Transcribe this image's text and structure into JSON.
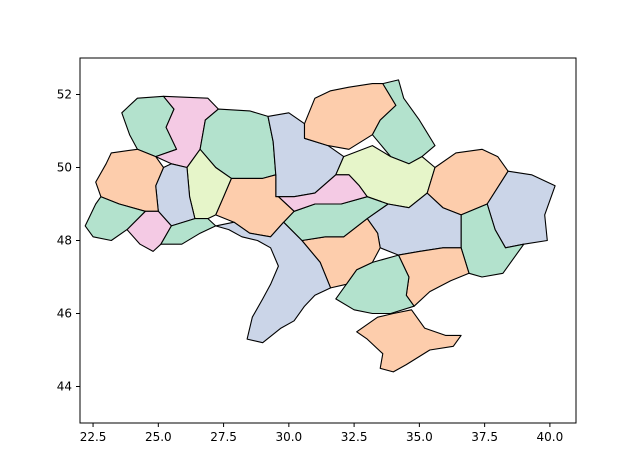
{
  "chart_data": {
    "type": "map",
    "title": "",
    "xlabel": "",
    "ylabel": "",
    "xlim": [
      22.0,
      41.0
    ],
    "ylim": [
      43.0,
      53.0
    ],
    "x_ticks": [
      "22.5",
      "25.0",
      "27.5",
      "30.0",
      "32.5",
      "35.0",
      "37.5",
      "40.0"
    ],
    "y_ticks": [
      "44",
      "46",
      "48",
      "50",
      "52"
    ],
    "x_tick_values": [
      22.5,
      25.0,
      27.5,
      30.0,
      32.5,
      35.0,
      37.5,
      40.0
    ],
    "y_tick_values": [
      44,
      46,
      48,
      50,
      52
    ],
    "grid": false,
    "legend": "none",
    "palette": {
      "green": "#b3e2cd",
      "orange": "#fdcdac",
      "blue": "#cbd5e8",
      "pink": "#f4cae4",
      "lime": "#e6f5c9"
    },
    "regions": [
      {
        "id": "volyn",
        "color": "green",
        "coords": [
          [
            23.6,
            51.5
          ],
          [
            24.2,
            51.9
          ],
          [
            25.2,
            51.95
          ],
          [
            25.6,
            51.6
          ],
          [
            25.3,
            51.1
          ],
          [
            25.7,
            50.5
          ],
          [
            24.9,
            50.3
          ],
          [
            24.2,
            50.5
          ],
          [
            23.9,
            50.9
          ]
        ]
      },
      {
        "id": "rivne",
        "color": "pink",
        "coords": [
          [
            25.6,
            51.6
          ],
          [
            25.2,
            51.95
          ],
          [
            26.9,
            51.9
          ],
          [
            27.3,
            51.6
          ],
          [
            26.8,
            51.3
          ],
          [
            26.6,
            50.5
          ],
          [
            26.1,
            50.0
          ],
          [
            25.5,
            50.1
          ],
          [
            24.9,
            50.3
          ],
          [
            25.7,
            50.5
          ],
          [
            25.3,
            51.1
          ]
        ]
      },
      {
        "id": "zhytomyr",
        "color": "green",
        "coords": [
          [
            27.3,
            51.6
          ],
          [
            28.5,
            51.55
          ],
          [
            29.2,
            51.4
          ],
          [
            29.4,
            50.7
          ],
          [
            29.5,
            49.8
          ],
          [
            29.0,
            49.7
          ],
          [
            28.0,
            49.7
          ],
          [
            27.8,
            49.7
          ],
          [
            27.2,
            50.0
          ],
          [
            26.6,
            50.5
          ],
          [
            26.8,
            51.3
          ]
        ]
      },
      {
        "id": "kyiv",
        "color": "blue",
        "coords": [
          [
            29.2,
            51.4
          ],
          [
            30.0,
            51.5
          ],
          [
            30.6,
            51.2
          ],
          [
            30.6,
            50.8
          ],
          [
            31.5,
            50.6
          ],
          [
            32.1,
            50.3
          ],
          [
            31.8,
            49.8
          ],
          [
            31.0,
            49.3
          ],
          [
            30.2,
            49.2
          ],
          [
            29.5,
            49.2
          ],
          [
            29.5,
            49.8
          ],
          [
            29.4,
            50.7
          ]
        ]
      },
      {
        "id": "chernihiv",
        "color": "orange",
        "coords": [
          [
            30.6,
            51.2
          ],
          [
            31.0,
            51.9
          ],
          [
            31.6,
            52.1
          ],
          [
            32.3,
            52.2
          ],
          [
            33.2,
            52.3
          ],
          [
            33.6,
            52.3
          ],
          [
            34.1,
            51.7
          ],
          [
            33.5,
            51.3
          ],
          [
            33.2,
            50.9
          ],
          [
            32.3,
            50.5
          ],
          [
            31.5,
            50.6
          ],
          [
            30.6,
            50.8
          ]
        ]
      },
      {
        "id": "sumy",
        "color": "green",
        "coords": [
          [
            33.6,
            52.3
          ],
          [
            34.2,
            52.4
          ],
          [
            34.4,
            51.9
          ],
          [
            35.0,
            51.3
          ],
          [
            35.6,
            50.6
          ],
          [
            35.1,
            50.3
          ],
          [
            34.6,
            50.1
          ],
          [
            33.9,
            50.3
          ],
          [
            33.2,
            50.9
          ],
          [
            33.5,
            51.3
          ],
          [
            34.1,
            51.7
          ]
        ]
      },
      {
        "id": "poltava",
        "color": "lime",
        "coords": [
          [
            32.1,
            50.3
          ],
          [
            33.2,
            50.6
          ],
          [
            33.9,
            50.3
          ],
          [
            34.6,
            50.1
          ],
          [
            35.1,
            50.3
          ],
          [
            35.6,
            50.0
          ],
          [
            35.3,
            49.3
          ],
          [
            34.6,
            48.9
          ],
          [
            33.8,
            49.0
          ],
          [
            33.0,
            49.2
          ],
          [
            32.7,
            49.5
          ],
          [
            32.3,
            49.8
          ],
          [
            31.8,
            49.8
          ]
        ]
      },
      {
        "id": "kharkiv",
        "color": "orange",
        "coords": [
          [
            35.6,
            50.0
          ],
          [
            36.4,
            50.4
          ],
          [
            37.4,
            50.5
          ],
          [
            38.0,
            50.3
          ],
          [
            38.4,
            49.9
          ],
          [
            37.6,
            49.0
          ],
          [
            36.6,
            48.7
          ],
          [
            35.9,
            48.9
          ],
          [
            35.3,
            49.3
          ]
        ]
      },
      {
        "id": "luhansk",
        "color": "blue",
        "coords": [
          [
            38.4,
            49.9
          ],
          [
            39.3,
            49.8
          ],
          [
            40.2,
            49.5
          ],
          [
            39.8,
            48.7
          ],
          [
            39.9,
            48.0
          ],
          [
            39.0,
            47.9
          ],
          [
            38.3,
            47.8
          ],
          [
            37.9,
            48.3
          ],
          [
            37.6,
            49.0
          ]
        ]
      },
      {
        "id": "donetsk",
        "color": "green",
        "coords": [
          [
            37.6,
            49.0
          ],
          [
            37.9,
            48.3
          ],
          [
            38.3,
            47.8
          ],
          [
            39.0,
            47.9
          ],
          [
            38.2,
            47.1
          ],
          [
            37.4,
            47.0
          ],
          [
            36.9,
            47.1
          ],
          [
            36.6,
            47.8
          ],
          [
            36.6,
            48.7
          ]
        ]
      },
      {
        "id": "dnipro",
        "color": "blue",
        "coords": [
          [
            33.0,
            48.6
          ],
          [
            33.8,
            49.0
          ],
          [
            34.6,
            48.9
          ],
          [
            35.3,
            49.3
          ],
          [
            35.9,
            48.9
          ],
          [
            36.6,
            48.7
          ],
          [
            36.6,
            47.8
          ],
          [
            35.9,
            47.8
          ],
          [
            35.0,
            47.7
          ],
          [
            34.2,
            47.6
          ],
          [
            33.5,
            47.8
          ],
          [
            33.4,
            48.2
          ]
        ]
      },
      {
        "id": "zaporizhzhia",
        "color": "orange",
        "coords": [
          [
            34.2,
            47.6
          ],
          [
            35.0,
            47.7
          ],
          [
            35.9,
            47.8
          ],
          [
            36.6,
            47.8
          ],
          [
            36.9,
            47.1
          ],
          [
            36.2,
            46.9
          ],
          [
            35.4,
            46.6
          ],
          [
            34.8,
            46.2
          ],
          [
            34.5,
            46.5
          ],
          [
            34.6,
            47.0
          ]
        ]
      },
      {
        "id": "kherson",
        "color": "green",
        "coords": [
          [
            32.2,
            46.8
          ],
          [
            32.6,
            47.2
          ],
          [
            33.2,
            47.4
          ],
          [
            34.2,
            47.6
          ],
          [
            34.6,
            47.0
          ],
          [
            34.5,
            46.5
          ],
          [
            34.8,
            46.2
          ],
          [
            33.9,
            46.0
          ],
          [
            33.2,
            46.0
          ],
          [
            32.5,
            46.1
          ],
          [
            31.8,
            46.4
          ]
        ]
      },
      {
        "id": "mykolaiv",
        "color": "orange",
        "coords": [
          [
            30.5,
            48.0
          ],
          [
            31.4,
            48.1
          ],
          [
            32.1,
            48.1
          ],
          [
            33.0,
            48.6
          ],
          [
            33.4,
            48.2
          ],
          [
            33.5,
            47.8
          ],
          [
            33.2,
            47.4
          ],
          [
            32.6,
            47.2
          ],
          [
            32.2,
            46.8
          ],
          [
            31.6,
            46.7
          ],
          [
            31.2,
            47.4
          ]
        ]
      },
      {
        "id": "kirovohrad",
        "color": "green",
        "coords": [
          [
            29.8,
            48.5
          ],
          [
            30.5,
            48.0
          ],
          [
            31.4,
            48.1
          ],
          [
            32.1,
            48.1
          ],
          [
            33.0,
            48.6
          ],
          [
            33.8,
            49.0
          ],
          [
            33.0,
            49.2
          ],
          [
            32.0,
            49.0
          ],
          [
            31.0,
            49.0
          ],
          [
            30.2,
            48.8
          ]
        ]
      },
      {
        "id": "cherkasy",
        "color": "pink",
        "coords": [
          [
            29.6,
            49.2
          ],
          [
            30.2,
            49.2
          ],
          [
            31.0,
            49.3
          ],
          [
            31.8,
            49.8
          ],
          [
            32.3,
            49.8
          ],
          [
            32.7,
            49.5
          ],
          [
            33.0,
            49.2
          ],
          [
            32.0,
            49.0
          ],
          [
            31.0,
            49.0
          ],
          [
            30.2,
            48.8
          ]
        ]
      },
      {
        "id": "vinnytsia",
        "color": "orange",
        "coords": [
          [
            27.8,
            49.7
          ],
          [
            28.0,
            49.7
          ],
          [
            29.0,
            49.7
          ],
          [
            29.5,
            49.8
          ],
          [
            29.5,
            49.2
          ],
          [
            29.6,
            49.2
          ],
          [
            30.2,
            48.8
          ],
          [
            29.8,
            48.5
          ],
          [
            29.3,
            48.1
          ],
          [
            28.5,
            48.2
          ],
          [
            27.9,
            48.5
          ],
          [
            27.2,
            48.7
          ],
          [
            27.5,
            49.2
          ]
        ]
      },
      {
        "id": "khmelnytskyi",
        "color": "lime",
        "coords": [
          [
            26.6,
            50.5
          ],
          [
            27.2,
            50.0
          ],
          [
            27.8,
            49.7
          ],
          [
            27.5,
            49.2
          ],
          [
            27.2,
            48.7
          ],
          [
            26.9,
            48.6
          ],
          [
            26.4,
            48.6
          ],
          [
            26.2,
            49.2
          ],
          [
            26.1,
            50.0
          ]
        ]
      },
      {
        "id": "ternopil",
        "color": "blue",
        "coords": [
          [
            25.5,
            50.1
          ],
          [
            26.1,
            50.0
          ],
          [
            26.2,
            49.2
          ],
          [
            26.4,
            48.6
          ],
          [
            25.5,
            48.4
          ],
          [
            25.0,
            48.8
          ],
          [
            24.9,
            49.5
          ],
          [
            25.2,
            50.0
          ]
        ]
      },
      {
        "id": "lviv",
        "color": "orange",
        "coords": [
          [
            23.2,
            50.4
          ],
          [
            24.2,
            50.5
          ],
          [
            24.9,
            50.3
          ],
          [
            25.2,
            50.0
          ],
          [
            24.9,
            49.5
          ],
          [
            25.0,
            48.8
          ],
          [
            24.5,
            48.8
          ],
          [
            23.5,
            49.0
          ],
          [
            22.8,
            49.2
          ],
          [
            22.6,
            49.6
          ],
          [
            23.0,
            50.1
          ]
        ]
      },
      {
        "id": "ivano-frankivsk",
        "color": "pink",
        "coords": [
          [
            24.5,
            48.8
          ],
          [
            25.0,
            48.8
          ],
          [
            25.5,
            48.4
          ],
          [
            25.1,
            47.9
          ],
          [
            24.8,
            47.7
          ],
          [
            24.3,
            47.9
          ],
          [
            23.8,
            48.3
          ]
        ]
      },
      {
        "id": "chernivtsi",
        "color": "green",
        "coords": [
          [
            25.5,
            48.4
          ],
          [
            26.4,
            48.6
          ],
          [
            26.9,
            48.6
          ],
          [
            27.2,
            48.4
          ],
          [
            26.6,
            48.2
          ],
          [
            25.9,
            47.9
          ],
          [
            25.1,
            47.9
          ]
        ]
      },
      {
        "id": "zakarpattia",
        "color": "green",
        "coords": [
          [
            22.2,
            48.4
          ],
          [
            22.6,
            49.0
          ],
          [
            22.8,
            49.2
          ],
          [
            23.5,
            49.0
          ],
          [
            24.5,
            48.8
          ],
          [
            23.8,
            48.3
          ],
          [
            23.2,
            48.0
          ],
          [
            22.5,
            48.1
          ]
        ]
      },
      {
        "id": "odesa",
        "color": "blue",
        "coords": [
          [
            27.2,
            48.4
          ],
          [
            27.9,
            48.5
          ],
          [
            28.5,
            48.2
          ],
          [
            29.3,
            48.1
          ],
          [
            29.8,
            48.5
          ],
          [
            30.5,
            48.0
          ],
          [
            31.2,
            47.4
          ],
          [
            31.6,
            46.7
          ],
          [
            31.0,
            46.5
          ],
          [
            30.6,
            46.2
          ],
          [
            30.2,
            45.8
          ],
          [
            29.7,
            45.6
          ],
          [
            29.0,
            45.2
          ],
          [
            28.4,
            45.3
          ],
          [
            28.6,
            45.9
          ],
          [
            29.0,
            46.4
          ],
          [
            29.3,
            46.8
          ],
          [
            29.6,
            47.3
          ],
          [
            29.3,
            47.8
          ],
          [
            28.8,
            48.0
          ],
          [
            28.2,
            48.1
          ],
          [
            27.7,
            48.3
          ]
        ]
      },
      {
        "id": "crimea",
        "color": "orange",
        "coords": [
          [
            32.6,
            45.5
          ],
          [
            33.4,
            45.9
          ],
          [
            34.0,
            46.0
          ],
          [
            34.7,
            46.1
          ],
          [
            35.2,
            45.6
          ],
          [
            36.0,
            45.4
          ],
          [
            36.6,
            45.4
          ],
          [
            36.3,
            45.1
          ],
          [
            35.4,
            45.0
          ],
          [
            34.5,
            44.6
          ],
          [
            34.0,
            44.4
          ],
          [
            33.5,
            44.5
          ],
          [
            33.6,
            44.9
          ],
          [
            33.0,
            45.3
          ]
        ]
      }
    ]
  }
}
